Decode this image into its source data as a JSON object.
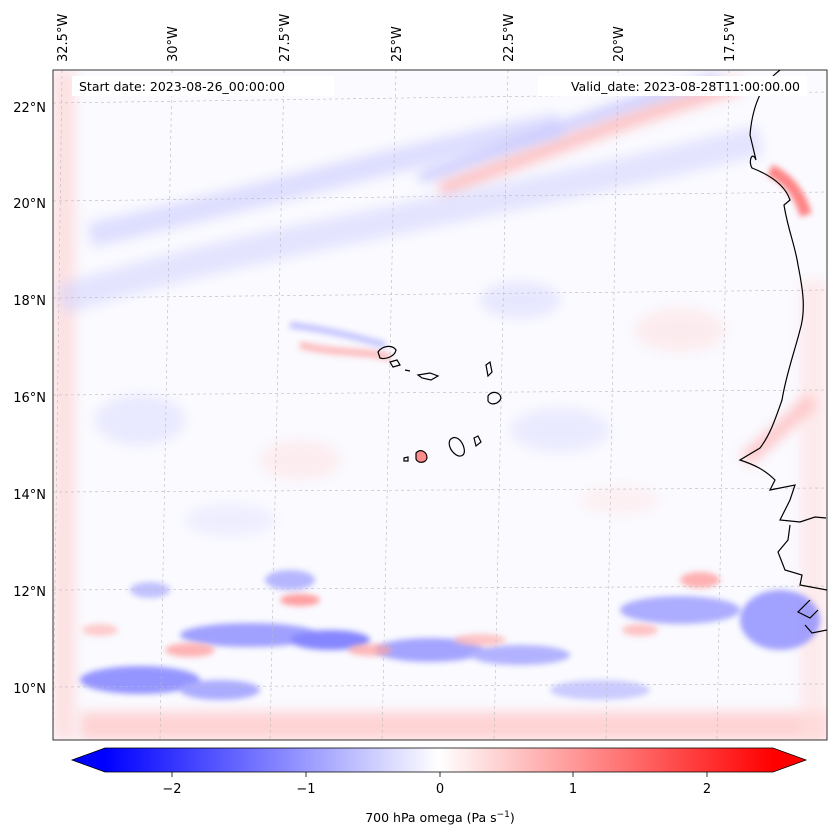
{
  "annotations": {
    "start_date": "Start date: 2023-08-26_00:00:00",
    "valid_date": "Valid_date: 2023-08-28T11:00:00.00"
  },
  "axes": {
    "lon_labels": [
      "32.5°W",
      "30°W",
      "27.5°W",
      "25°W",
      "22.5°W",
      "20°W",
      "17.5°W"
    ],
    "lat_labels": [
      "22°N",
      "20°N",
      "18°N",
      "16°N",
      "14°N",
      "12°N",
      "10°N"
    ]
  },
  "colorbar": {
    "title": "700 hPa omega (Pa s",
    "unit_superscript": "−1",
    "title_suffix": ")",
    "tick_labels": [
      "−2",
      "−1",
      "0",
      "1",
      "2"
    ],
    "low_color": "#0000ff",
    "mid_color": "#ffffff",
    "high_color": "#ff0000"
  },
  "map": {
    "variable": "700 hPa omega",
    "ocean_background": "#fafaff",
    "coastline_color": "#000000"
  }
}
